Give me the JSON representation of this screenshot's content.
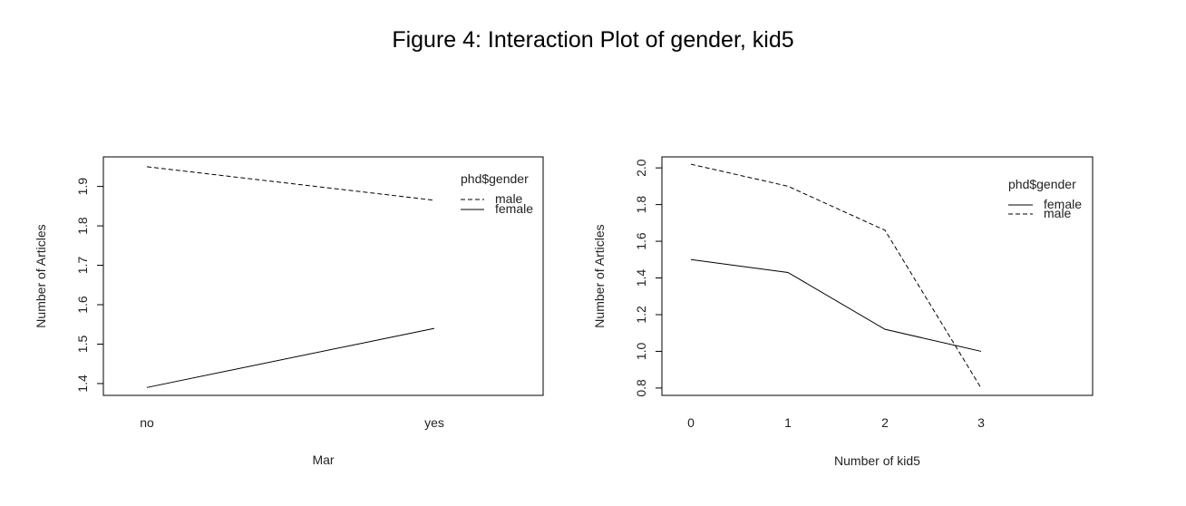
{
  "figure_title": "Figure 4: Interaction Plot of gender, kid5",
  "chart_data": [
    {
      "type": "line",
      "title": "",
      "xlabel": "Mar",
      "ylabel": "Number of Articles",
      "categories": [
        "no",
        "yes"
      ],
      "ylim": [
        1.37,
        1.975
      ],
      "yticks": [
        "1.4",
        "1.5",
        "1.6",
        "1.7",
        "1.8",
        "1.9"
      ],
      "grid": false,
      "legend_title": "phd$gender",
      "legend_position": "top-right",
      "series": [
        {
          "name": "male",
          "values": [
            1.95,
            1.865
          ],
          "line_style": "dashed"
        },
        {
          "name": "female",
          "values": [
            1.39,
            1.54
          ],
          "line_style": "solid"
        }
      ]
    },
    {
      "type": "line",
      "title": "",
      "xlabel": "Number of kid5",
      "ylabel": "Number of Articles",
      "categories": [
        "0",
        "1",
        "2",
        "3"
      ],
      "ylim": [
        0.76,
        2.06
      ],
      "yticks": [
        "0.8",
        "1.0",
        "1.2",
        "1.4",
        "1.6",
        "1.8",
        "2.0"
      ],
      "grid": false,
      "legend_title": "phd$gender",
      "legend_position": "top-right",
      "series": [
        {
          "name": "female",
          "values": [
            1.5,
            1.43,
            1.12,
            1.0
          ],
          "line_style": "solid"
        },
        {
          "name": "male",
          "values": [
            2.02,
            1.9,
            1.66,
            0.8
          ],
          "line_style": "dashed"
        }
      ]
    }
  ]
}
